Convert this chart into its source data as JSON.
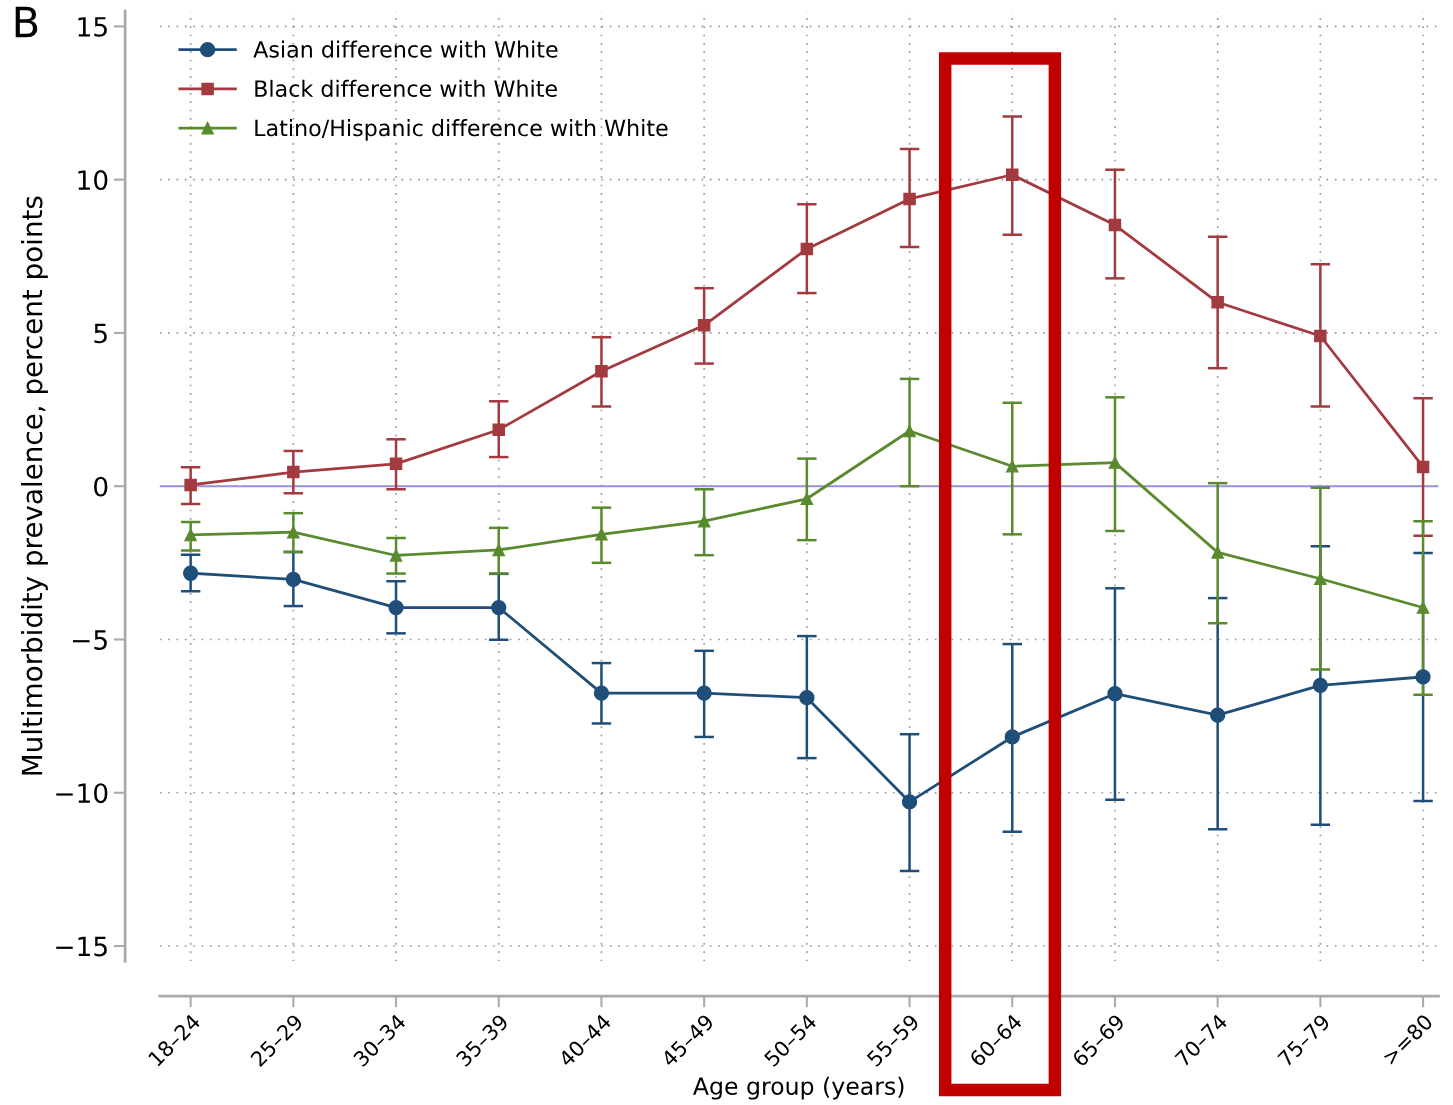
{
  "chart_data": {
    "type": "line",
    "xlabel": "Age group (years)",
    "ylabel": "Multimorbidity prevalence, percent points",
    "annotations": [
      "B"
    ],
    "categories": [
      "18–24",
      "25–29",
      "30–34",
      "35–39",
      "40–44",
      "45–49",
      "50–54",
      "55–59",
      "60–64",
      "65–69",
      "70–74",
      "75–79",
      ">=80"
    ],
    "series": [
      {
        "name": "Asian difference with White",
        "color": "#1f4e79",
        "marker": "circle",
        "values": [
          -2.84,
          -3.04,
          -3.96,
          -3.96,
          -6.75,
          -6.75,
          -6.9,
          -10.3,
          -8.18,
          -6.77,
          -7.47,
          -6.5,
          -6.22
        ],
        "errors": [
          [
            -3.43,
            -2.24
          ],
          [
            -3.91,
            -2.15
          ],
          [
            -4.8,
            -3.1
          ],
          [
            -5.01,
            -2.86
          ],
          [
            -7.74,
            -5.77
          ],
          [
            -8.18,
            -5.37
          ],
          [
            -8.87,
            -4.89
          ],
          [
            -12.55,
            -8.09
          ],
          [
            -11.27,
            -5.15
          ],
          [
            -10.23,
            -3.33
          ],
          [
            -11.19,
            -3.65
          ],
          [
            -11.04,
            -1.96
          ],
          [
            -10.27,
            -2.18
          ]
        ]
      },
      {
        "name": "Black difference with White",
        "color": "#a23a3f",
        "marker": "square",
        "values": [
          0.04,
          0.46,
          0.73,
          1.84,
          3.75,
          5.25,
          7.74,
          9.37,
          10.16,
          8.52,
          6.0,
          4.9,
          0.63
        ],
        "errors": [
          [
            -0.58,
            0.62
          ],
          [
            -0.23,
            1.15
          ],
          [
            -0.1,
            1.53
          ],
          [
            0.95,
            2.77
          ],
          [
            2.6,
            4.86
          ],
          [
            4.0,
            6.46
          ],
          [
            6.3,
            9.2
          ],
          [
            7.8,
            11.0
          ],
          [
            8.2,
            12.06
          ],
          [
            6.78,
            10.32
          ],
          [
            3.85,
            8.14
          ],
          [
            2.6,
            7.24
          ],
          [
            -1.62,
            2.87
          ]
        ]
      },
      {
        "name": "Latino/Hispanic difference with White",
        "color": "#5a8a2e",
        "marker": "triangle",
        "values": [
          -1.59,
          -1.5,
          -2.26,
          -2.08,
          -1.57,
          -1.14,
          -0.41,
          1.8,
          0.65,
          0.77,
          -2.16,
          -3.02,
          -3.96
        ],
        "errors": [
          [
            -2.1,
            -1.17
          ],
          [
            -2.14,
            -0.88
          ],
          [
            -2.85,
            -1.69
          ],
          [
            -2.85,
            -1.36
          ],
          [
            -2.5,
            -0.7
          ],
          [
            -2.25,
            -0.1
          ],
          [
            -1.76,
            0.9
          ],
          [
            0.0,
            3.5
          ],
          [
            -1.57,
            2.72
          ],
          [
            -1.46,
            2.9
          ],
          [
            -4.47,
            0.1
          ],
          [
            -5.98,
            -0.05
          ],
          [
            -6.8,
            -1.14
          ]
        ]
      }
    ],
    "ylim": [
      -15.5,
      15.5
    ],
    "yticks": [
      -15,
      -10,
      -5,
      0,
      5,
      10,
      15
    ],
    "ref_lines": [
      {
        "axis": "y",
        "value": 0,
        "color": "#9b8fe0"
      }
    ],
    "grid": true,
    "legend": "top left",
    "line_style": "solid"
  }
}
